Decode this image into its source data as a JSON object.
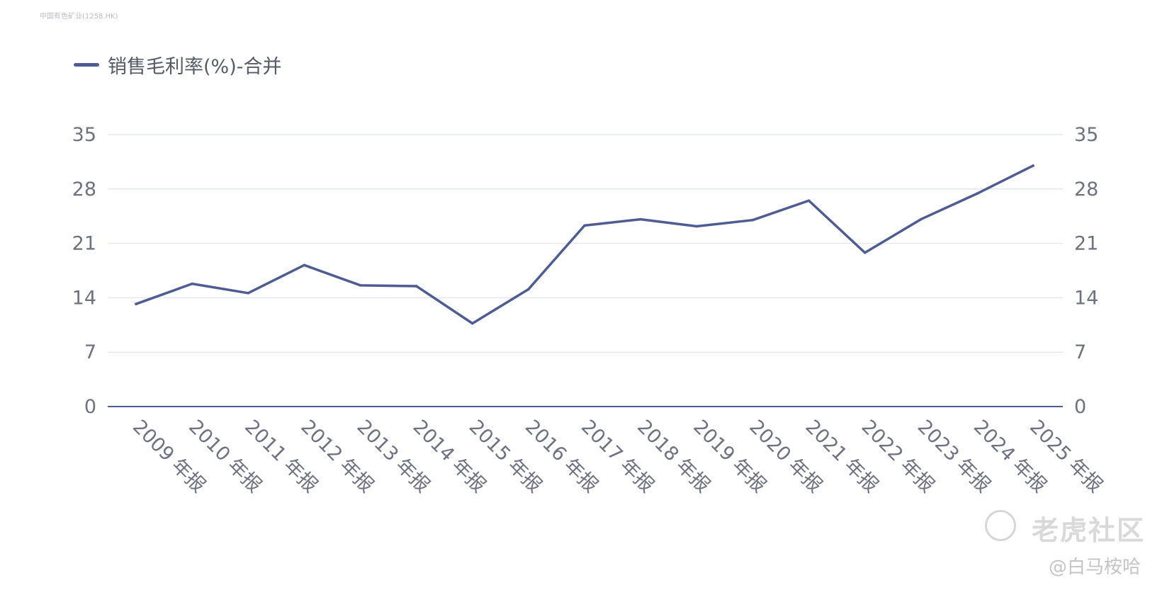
{
  "source_label": "中国有色矿业(1258.HK)",
  "watermark": {
    "brand": "老虎社区",
    "user": "@白马桉哈"
  },
  "colors": {
    "line": "#4f5b93",
    "grid": "#e4e7ef",
    "axis": "#4f5b93",
    "text": "#6e7280"
  },
  "chart_data": {
    "type": "line",
    "title": "",
    "xlabel": "",
    "ylabel": "",
    "legend_position": "top-left",
    "grid": true,
    "categories": [
      "2009 年报",
      "2010 年报",
      "2011 年报",
      "2012 年报",
      "2013 年报",
      "2014 年报",
      "2015 年报",
      "2016 年报",
      "2017 年报",
      "2018 年报",
      "2019 年报",
      "2020 年报",
      "2021 年报",
      "2022 年报",
      "2023 年报",
      "2024 年报",
      "2025 年报"
    ],
    "series": [
      {
        "name": "销售毛利率(%)-合并",
        "values": [
          13.2,
          15.8,
          14.6,
          18.2,
          15.6,
          15.5,
          10.7,
          15.1,
          23.3,
          24.1,
          23.2,
          24.0,
          26.5,
          19.8,
          24.1,
          27.4,
          31.0
        ]
      }
    ],
    "ylim": [
      0,
      35
    ],
    "yticks": [
      0,
      7,
      14,
      21,
      28,
      35
    ]
  }
}
